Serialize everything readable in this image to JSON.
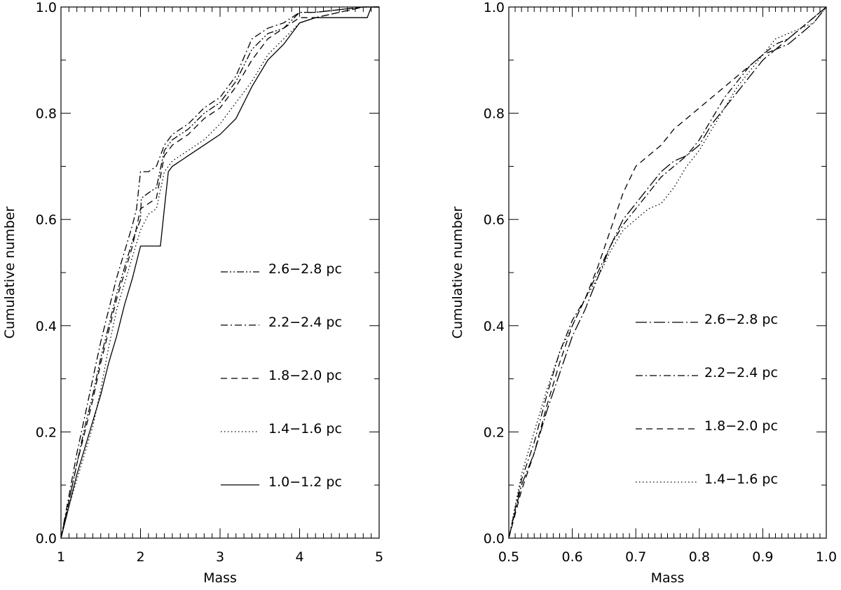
{
  "chart_data": [
    {
      "type": "line",
      "xlabel": "Mass",
      "ylabel": "Cumulative number",
      "xlim": [
        1,
        5
      ],
      "ylim": [
        0,
        1
      ],
      "xticks": [
        1,
        2,
        3,
        4,
        5
      ],
      "xtick_labels": [
        "1",
        "2",
        "3",
        "4",
        "5"
      ],
      "yticks": [
        0,
        0.2,
        0.4,
        0.6,
        0.8,
        1.0
      ],
      "ytick_labels": [
        "0.0",
        "0.2",
        "0.4",
        "0.6",
        "0.8",
        "1.0"
      ],
      "legend_placement": "lower-right",
      "series": [
        {
          "name": "2.6−2.8 pc",
          "style": "dash-dot-dot",
          "x": [
            1.0,
            1.1,
            1.2,
            1.3,
            1.4,
            1.5,
            1.6,
            1.7,
            1.8,
            1.9,
            2.0,
            2.01,
            2.1,
            2.2,
            2.3,
            2.4,
            2.6,
            2.8,
            3.0,
            3.2,
            3.4,
            3.6,
            3.8,
            4.0,
            4.2,
            4.5,
            4.8,
            5.0
          ],
          "y": [
            0.0,
            0.07,
            0.14,
            0.21,
            0.27,
            0.34,
            0.4,
            0.46,
            0.51,
            0.56,
            0.6,
            0.64,
            0.65,
            0.66,
            0.73,
            0.75,
            0.77,
            0.8,
            0.82,
            0.86,
            0.92,
            0.95,
            0.96,
            0.99,
            0.99,
            0.995,
            1.0,
            1.0
          ]
        },
        {
          "name": "2.2−2.4 pc",
          "style": "dash-dot",
          "x": [
            1.0,
            1.1,
            1.2,
            1.3,
            1.4,
            1.5,
            1.6,
            1.7,
            1.8,
            1.9,
            1.95,
            2.0,
            2.1,
            2.2,
            2.3,
            2.4,
            2.6,
            2.8,
            3.0,
            3.2,
            3.4,
            3.6,
            3.8,
            4.0,
            4.2,
            4.5,
            4.8,
            5.0
          ],
          "y": [
            0.0,
            0.08,
            0.16,
            0.23,
            0.3,
            0.37,
            0.43,
            0.49,
            0.54,
            0.59,
            0.62,
            0.69,
            0.69,
            0.7,
            0.74,
            0.76,
            0.78,
            0.81,
            0.83,
            0.87,
            0.94,
            0.96,
            0.97,
            0.99,
            0.99,
            0.995,
            1.0,
            1.0
          ]
        },
        {
          "name": "1.8−2.0 pc",
          "style": "dashed",
          "x": [
            1.0,
            1.1,
            1.2,
            1.3,
            1.4,
            1.5,
            1.6,
            1.7,
            1.8,
            1.9,
            2.0,
            2.1,
            2.2,
            2.3,
            2.4,
            2.6,
            2.8,
            3.0,
            3.2,
            3.4,
            3.6,
            3.8,
            4.0,
            4.2,
            4.5,
            4.8,
            5.0
          ],
          "y": [
            0.0,
            0.07,
            0.14,
            0.2,
            0.26,
            0.33,
            0.39,
            0.45,
            0.5,
            0.55,
            0.62,
            0.63,
            0.64,
            0.72,
            0.74,
            0.76,
            0.79,
            0.81,
            0.85,
            0.9,
            0.94,
            0.96,
            0.98,
            0.98,
            0.99,
            1.0,
            1.0
          ]
        },
        {
          "name": "1.4−1.6 pc",
          "style": "dotted",
          "x": [
            1.0,
            1.1,
            1.2,
            1.3,
            1.4,
            1.5,
            1.6,
            1.7,
            1.8,
            1.9,
            2.0,
            2.1,
            2.2,
            2.3,
            2.4,
            2.6,
            2.8,
            3.0,
            3.2,
            3.4,
            3.6,
            3.8,
            4.0,
            4.2,
            4.5,
            4.8,
            5.0
          ],
          "y": [
            0.0,
            0.06,
            0.11,
            0.16,
            0.21,
            0.28,
            0.36,
            0.43,
            0.48,
            0.53,
            0.58,
            0.61,
            0.62,
            0.69,
            0.71,
            0.73,
            0.75,
            0.78,
            0.82,
            0.86,
            0.91,
            0.94,
            0.97,
            0.98,
            0.99,
            1.0,
            1.0
          ]
        },
        {
          "name": "1.0−1.2 pc",
          "style": "solid",
          "x": [
            1.0,
            1.1,
            1.2,
            1.3,
            1.4,
            1.5,
            1.6,
            1.7,
            1.8,
            1.9,
            2.0,
            2.25,
            2.3,
            2.35,
            2.4,
            2.6,
            2.8,
            3.0,
            3.2,
            3.4,
            3.6,
            3.8,
            4.0,
            4.2,
            4.5,
            4.85,
            4.9,
            5.0
          ],
          "y": [
            0.0,
            0.06,
            0.12,
            0.17,
            0.22,
            0.27,
            0.33,
            0.38,
            0.44,
            0.49,
            0.55,
            0.55,
            0.62,
            0.69,
            0.7,
            0.72,
            0.74,
            0.76,
            0.79,
            0.85,
            0.9,
            0.93,
            0.97,
            0.98,
            0.98,
            0.98,
            1.0,
            1.0
          ]
        }
      ]
    },
    {
      "type": "line",
      "xlabel": "Mass",
      "ylabel": "Cumulative number",
      "xlim": [
        0.5,
        1.0
      ],
      "ylim": [
        0,
        1
      ],
      "xticks": [
        0.5,
        0.6,
        0.7,
        0.8,
        0.9,
        1.0
      ],
      "xtick_labels": [
        "0.5",
        "0.6",
        "0.7",
        "0.8",
        "0.9",
        "1.0"
      ],
      "yticks": [
        0,
        0.2,
        0.4,
        0.6,
        0.8,
        1.0
      ],
      "ytick_labels": [
        "0.0",
        "0.2",
        "0.4",
        "0.6",
        "0.8",
        "1.0"
      ],
      "legend_placement": "lower-right",
      "series": [
        {
          "name": "2.6−2.8 pc",
          "style": "long-dash-dot",
          "x": [
            0.5,
            0.52,
            0.54,
            0.56,
            0.58,
            0.6,
            0.62,
            0.64,
            0.66,
            0.68,
            0.7,
            0.72,
            0.74,
            0.76,
            0.78,
            0.8,
            0.82,
            0.84,
            0.86,
            0.88,
            0.9,
            0.92,
            0.94,
            0.96,
            0.98,
            1.0
          ],
          "y": [
            0.0,
            0.1,
            0.16,
            0.24,
            0.31,
            0.38,
            0.43,
            0.49,
            0.55,
            0.6,
            0.63,
            0.66,
            0.69,
            0.71,
            0.72,
            0.74,
            0.78,
            0.81,
            0.84,
            0.87,
            0.9,
            0.92,
            0.93,
            0.95,
            0.97,
            1.0
          ]
        },
        {
          "name": "2.2−2.4 pc",
          "style": "dash-dot",
          "x": [
            0.5,
            0.52,
            0.54,
            0.56,
            0.58,
            0.6,
            0.62,
            0.64,
            0.66,
            0.68,
            0.7,
            0.72,
            0.74,
            0.76,
            0.78,
            0.8,
            0.82,
            0.84,
            0.86,
            0.88,
            0.9,
            0.92,
            0.94,
            0.96,
            0.98,
            1.0
          ],
          "y": [
            0.0,
            0.11,
            0.18,
            0.27,
            0.35,
            0.41,
            0.45,
            0.5,
            0.55,
            0.59,
            0.62,
            0.65,
            0.68,
            0.7,
            0.72,
            0.75,
            0.79,
            0.83,
            0.86,
            0.89,
            0.91,
            0.93,
            0.94,
            0.96,
            0.98,
            1.0
          ]
        },
        {
          "name": "1.8−2.0 pc",
          "style": "dashed",
          "x": [
            0.5,
            0.52,
            0.54,
            0.56,
            0.58,
            0.6,
            0.62,
            0.64,
            0.66,
            0.68,
            0.7,
            0.72,
            0.74,
            0.76,
            0.78,
            0.8,
            0.82,
            0.84,
            0.86,
            0.88,
            0.9,
            0.92,
            0.94,
            0.96,
            0.98,
            1.0
          ],
          "y": [
            0.0,
            0.09,
            0.16,
            0.25,
            0.33,
            0.4,
            0.45,
            0.51,
            0.58,
            0.65,
            0.7,
            0.72,
            0.74,
            0.77,
            0.79,
            0.81,
            0.83,
            0.85,
            0.87,
            0.89,
            0.91,
            0.92,
            0.94,
            0.96,
            0.98,
            1.0
          ]
        },
        {
          "name": "1.4−1.6 pc",
          "style": "dotted",
          "x": [
            0.5,
            0.52,
            0.54,
            0.56,
            0.58,
            0.6,
            0.62,
            0.64,
            0.66,
            0.68,
            0.7,
            0.72,
            0.74,
            0.76,
            0.78,
            0.8,
            0.82,
            0.84,
            0.86,
            0.88,
            0.9,
            0.92,
            0.94,
            0.96,
            0.98,
            1.0
          ],
          "y": [
            0.0,
            0.12,
            0.2,
            0.28,
            0.35,
            0.4,
            0.45,
            0.49,
            0.54,
            0.58,
            0.6,
            0.62,
            0.63,
            0.66,
            0.7,
            0.73,
            0.77,
            0.81,
            0.85,
            0.88,
            0.91,
            0.94,
            0.95,
            0.96,
            0.97,
            1.0
          ]
        }
      ]
    }
  ]
}
